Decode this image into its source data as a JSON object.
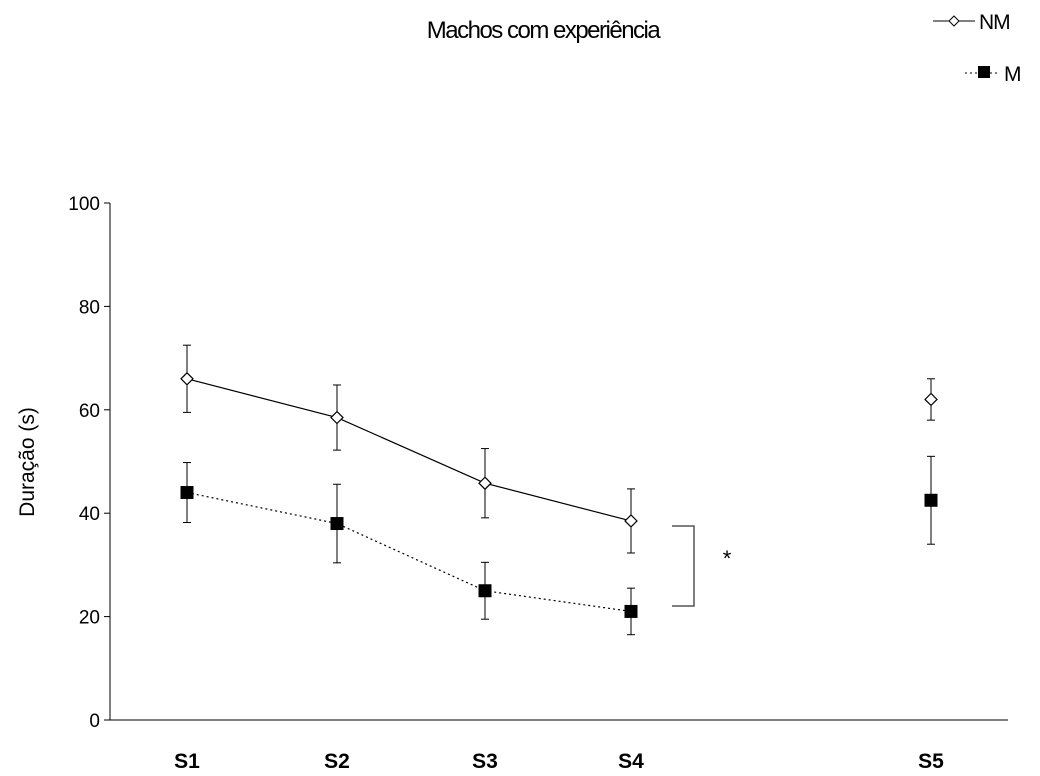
{
  "chart_data": {
    "type": "line",
    "title": "Machos com experiência",
    "ylabel": "Duração (s)",
    "xlabel": "",
    "categories": [
      "S1",
      "S2",
      "S3",
      "S4",
      "S5"
    ],
    "ylim": [
      0,
      100
    ],
    "yticks": [
      0,
      20,
      40,
      60,
      80,
      100
    ],
    "legend_position": "top-right",
    "grid": false,
    "series": [
      {
        "name": "NM",
        "marker": "open-diamond",
        "line_style": "solid",
        "connected_categories": [
          "S1",
          "S2",
          "S3",
          "S4"
        ],
        "values": [
          66,
          58.5,
          45.8,
          38.5,
          62
        ],
        "error": [
          6.5,
          6.3,
          6.7,
          6.2,
          4
        ]
      },
      {
        "name": "M",
        "marker": "filled-square",
        "line_style": "dotted",
        "connected_categories": [
          "S1",
          "S2",
          "S3",
          "S4"
        ],
        "values": [
          44,
          38,
          25,
          21,
          42.5
        ],
        "error": [
          5.8,
          7.6,
          5.5,
          4.5,
          8.5
        ]
      }
    ],
    "annotations": [
      {
        "text": "*",
        "between_series": [
          "NM",
          "M"
        ],
        "category": "S4"
      }
    ]
  }
}
